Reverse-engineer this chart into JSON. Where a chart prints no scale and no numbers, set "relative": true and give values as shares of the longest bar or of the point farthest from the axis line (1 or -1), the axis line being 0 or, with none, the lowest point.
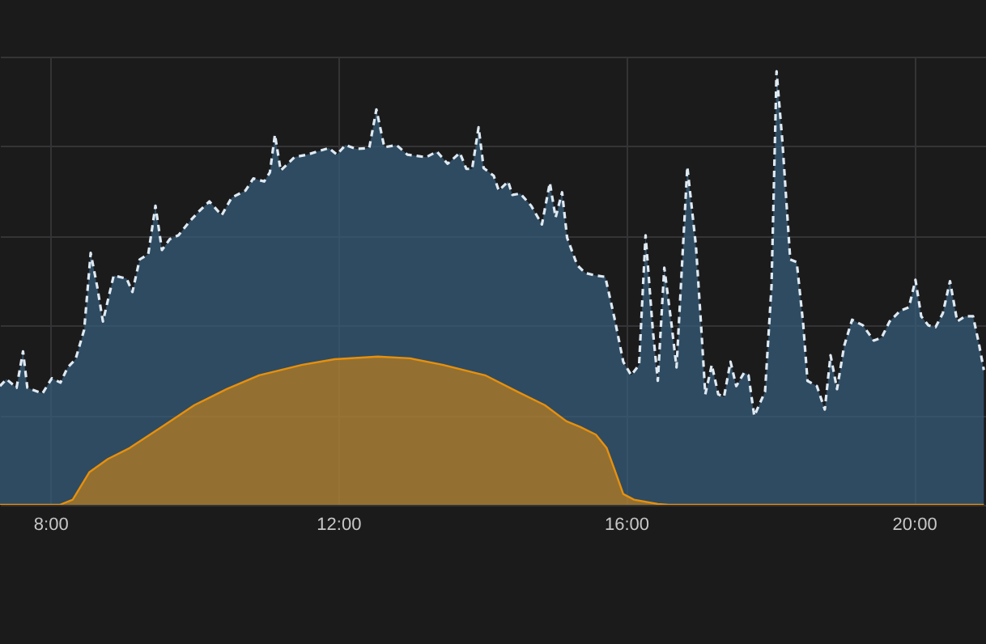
{
  "chart_data": {
    "type": "area",
    "relative": true,
    "grid": true,
    "xlim": [
      7.3,
      21.0
    ],
    "xticks": [
      {
        "value": 8,
        "label": "8:00"
      },
      {
        "value": 12,
        "label": "12:00"
      },
      {
        "value": 16,
        "label": "16:00"
      },
      {
        "value": 20,
        "label": "20:00"
      }
    ],
    "series": [
      {
        "color": "#36607f",
        "line_style": "dashed",
        "x": [
          7.3,
          7.39,
          7.53,
          7.62,
          7.68,
          7.89,
          8.02,
          8.14,
          8.24,
          8.35,
          8.47,
          8.56,
          8.65,
          8.73,
          8.88,
          9.06,
          9.14,
          9.24,
          9.36,
          9.46,
          9.55,
          9.66,
          9.78,
          9.93,
          10.07,
          10.21,
          10.38,
          10.52,
          10.71,
          10.82,
          10.97,
          11.05,
          11.12,
          11.2,
          11.39,
          11.57,
          11.87,
          11.98,
          12.1,
          12.25,
          12.43,
          12.53,
          12.64,
          12.81,
          12.96,
          13.22,
          13.37,
          13.52,
          13.69,
          13.78,
          13.86,
          13.95,
          14.02,
          14.16,
          14.23,
          14.36,
          14.42,
          14.53,
          14.68,
          14.83,
          14.94,
          15.02,
          15.11,
          15.18,
          15.32,
          15.43,
          15.58,
          15.71,
          15.84,
          15.96,
          16.07,
          16.18,
          16.27,
          16.37,
          16.44,
          16.53,
          16.63,
          16.7,
          16.85,
          16.97,
          17.04,
          17.1,
          17.19,
          17.28,
          17.36,
          17.45,
          17.53,
          17.64,
          17.7,
          17.78,
          17.93,
          18.02,
          18.09,
          18.17,
          18.28,
          18.37,
          18.46,
          18.52,
          18.65,
          18.76,
          18.84,
          18.93,
          19.03,
          19.14,
          19.29,
          19.44,
          19.55,
          19.66,
          19.81,
          19.93,
          20.02,
          20.1,
          20.2,
          20.3,
          20.4,
          20.5,
          20.6,
          20.71,
          20.82,
          20.9,
          20.97
        ],
        "values": [
          0.274,
          0.29,
          0.27,
          0.354,
          0.27,
          0.257,
          0.292,
          0.282,
          0.317,
          0.336,
          0.404,
          0.581,
          0.504,
          0.423,
          0.529,
          0.522,
          0.491,
          0.566,
          0.578,
          0.69,
          0.588,
          0.613,
          0.622,
          0.653,
          0.678,
          0.7,
          0.668,
          0.709,
          0.725,
          0.753,
          0.746,
          0.767,
          0.854,
          0.771,
          0.802,
          0.808,
          0.823,
          0.808,
          0.83,
          0.821,
          0.823,
          0.912,
          0.825,
          0.83,
          0.808,
          0.802,
          0.815,
          0.787,
          0.812,
          0.775,
          0.775,
          0.871,
          0.777,
          0.759,
          0.725,
          0.746,
          0.715,
          0.718,
          0.69,
          0.647,
          0.743,
          0.663,
          0.721,
          0.616,
          0.553,
          0.535,
          0.529,
          0.526,
          0.429,
          0.33,
          0.299,
          0.323,
          0.622,
          0.404,
          0.286,
          0.547,
          0.417,
          0.317,
          0.78,
          0.597,
          0.417,
          0.255,
          0.323,
          0.255,
          0.249,
          0.33,
          0.274,
          0.305,
          0.299,
          0.205,
          0.261,
          0.504,
          1,
          0.84,
          0.566,
          0.56,
          0.417,
          0.286,
          0.274,
          0.22,
          0.345,
          0.267,
          0.367,
          0.427,
          0.414,
          0.379,
          0.386,
          0.423,
          0.448,
          0.456,
          0.519,
          0.435,
          0.414,
          0.41,
          0.442,
          0.516,
          0.423,
          0.435,
          0.435,
          0.373,
          0.311
        ]
      },
      {
        "color": "#e8900c",
        "line_style": "solid",
        "x": [
          7.3,
          8.13,
          8.31,
          8.54,
          8.8,
          9.1,
          9.55,
          10.0,
          10.45,
          10.9,
          11.5,
          11.95,
          12.55,
          13.0,
          13.45,
          13.89,
          14.04,
          14.49,
          14.87,
          15.17,
          15.36,
          15.58,
          15.73,
          15.84,
          15.96,
          16.11,
          16.44,
          16.59,
          20.97
        ],
        "values": [
          0,
          0,
          0.012,
          0.075,
          0.106,
          0.131,
          0.18,
          0.23,
          0.267,
          0.299,
          0.323,
          0.336,
          0.342,
          0.338,
          0.323,
          0.305,
          0.299,
          0.261,
          0.23,
          0.193,
          0.18,
          0.162,
          0.131,
          0.081,
          0.025,
          0.012,
          0.002,
          0,
          0
        ]
      }
    ]
  }
}
